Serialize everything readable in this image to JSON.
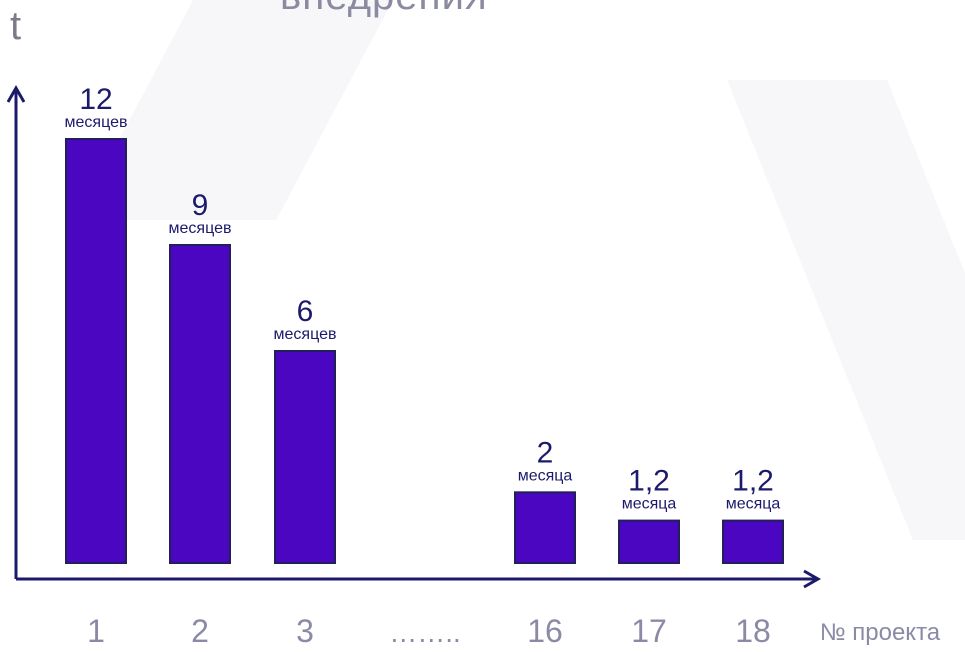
{
  "chart_data": {
    "type": "bar",
    "title": "внедрения",
    "ylabel": "t",
    "xlabel": "№ проекта",
    "categories": [
      "1",
      "2",
      "3",
      "16",
      "17",
      "18"
    ],
    "gap_label": "……..",
    "values": [
      12,
      9,
      6,
      2,
      1.2,
      1.2
    ],
    "value_labels": [
      "12",
      "9",
      "6",
      "2",
      "1,2",
      "1,2"
    ],
    "unit_labels": [
      "месяцев",
      "месяцев",
      "месяцев",
      "месяца",
      "месяца",
      "месяца"
    ],
    "ylim": [
      0,
      14
    ],
    "grid": false,
    "colors": {
      "bar_fill": "#4a06c0",
      "bar_stroke": "#22205a",
      "axis": "#1c1a6a",
      "value_text": "#1c1a6a",
      "tick_text": "#8a8aa6"
    }
  }
}
